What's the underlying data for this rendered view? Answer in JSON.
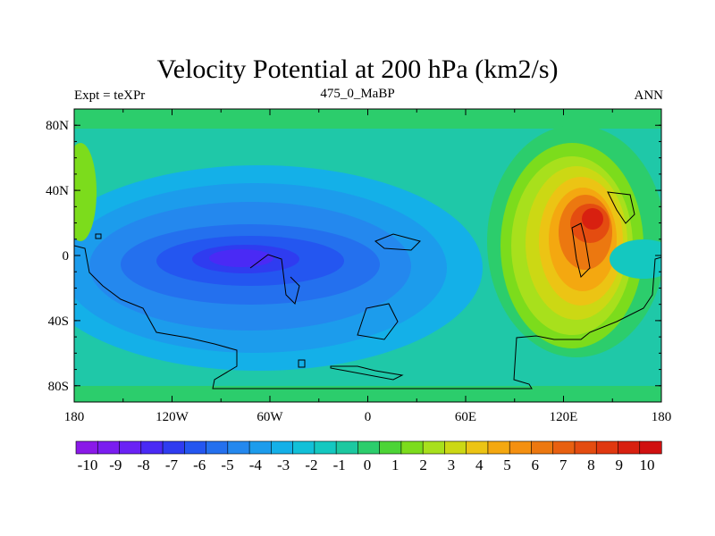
{
  "title": "Velocity Potential at 200 hPa (km2/s)",
  "subtitle_left": "Expt = teXPr",
  "subtitle_center": "475_0_MaBP",
  "subtitle_right": "ANN",
  "map": {
    "projection": "cylindrical-equidistant",
    "lon_range": [
      -180,
      180
    ],
    "lat_range": [
      -90,
      90
    ],
    "x_ticks": [
      {
        "value": -180,
        "label": "180"
      },
      {
        "value": -120,
        "label": "120W"
      },
      {
        "value": -60,
        "label": "60W"
      },
      {
        "value": 0,
        "label": "0"
      },
      {
        "value": 60,
        "label": "60E"
      },
      {
        "value": 120,
        "label": "120E"
      },
      {
        "value": 180,
        "label": "180"
      }
    ],
    "y_ticks": [
      {
        "value": 80,
        "label": "80N"
      },
      {
        "value": 40,
        "label": "40N"
      },
      {
        "value": 0,
        "label": "0"
      },
      {
        "value": -40,
        "label": "40S"
      },
      {
        "value": -80,
        "label": "80S"
      }
    ],
    "background_color": "#1fc8a8"
  },
  "colorbar": {
    "labels": [
      "-10",
      "-9",
      "-8",
      "-7",
      "-6",
      "-5",
      "-4",
      "-3",
      "-2",
      "-1",
      "0",
      "1",
      "2",
      "3",
      "4",
      "5",
      "6",
      "7",
      "8",
      "9",
      "10"
    ],
    "colors": [
      "#8a19e8",
      "#7a1df0",
      "#6a22f5",
      "#4a2af5",
      "#2f3cf0",
      "#2456f0",
      "#2470ee",
      "#2488ee",
      "#1c9cec",
      "#14b0e8",
      "#12c0d8",
      "#14c8c0",
      "#1cc8a0",
      "#2ccd6c",
      "#4cd436",
      "#7cdc1c",
      "#a8e01c",
      "#ccd814",
      "#ecc414",
      "#f4a810",
      "#f49010",
      "#ec7810",
      "#e86010",
      "#e44c10",
      "#e03810",
      "#d82010",
      "#d01010"
    ]
  }
}
